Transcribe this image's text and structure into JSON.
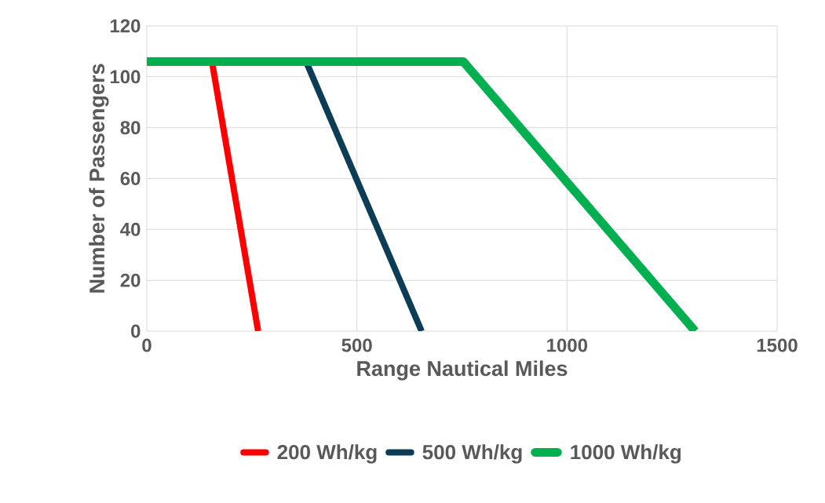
{
  "chart_data": {
    "type": "line",
    "xlabel": "Range Nautical Miles",
    "ylabel": "Number of Passengers",
    "xlim": [
      0,
      1500
    ],
    "ylim": [
      0,
      120
    ],
    "xticks": [
      0,
      500,
      1000,
      1500
    ],
    "yticks": [
      0,
      20,
      40,
      60,
      80,
      100,
      120
    ],
    "grid": true,
    "legend": "bottom",
    "marker": "none",
    "line_style": "solid",
    "series": [
      {
        "name": "200 Wh/kg",
        "color": "#ff0000",
        "x": [
          155,
          265
        ],
        "values": [
          106,
          0
        ]
      },
      {
        "name": "500 Wh/kg",
        "color": "#0d3d56",
        "x": [
          379,
          654
        ],
        "values": [
          106,
          0
        ]
      },
      {
        "name": "1000 Wh/kg",
        "color": "#00b050",
        "x": [
          0,
          753,
          1305
        ],
        "values": [
          106,
          106,
          0
        ]
      }
    ]
  }
}
